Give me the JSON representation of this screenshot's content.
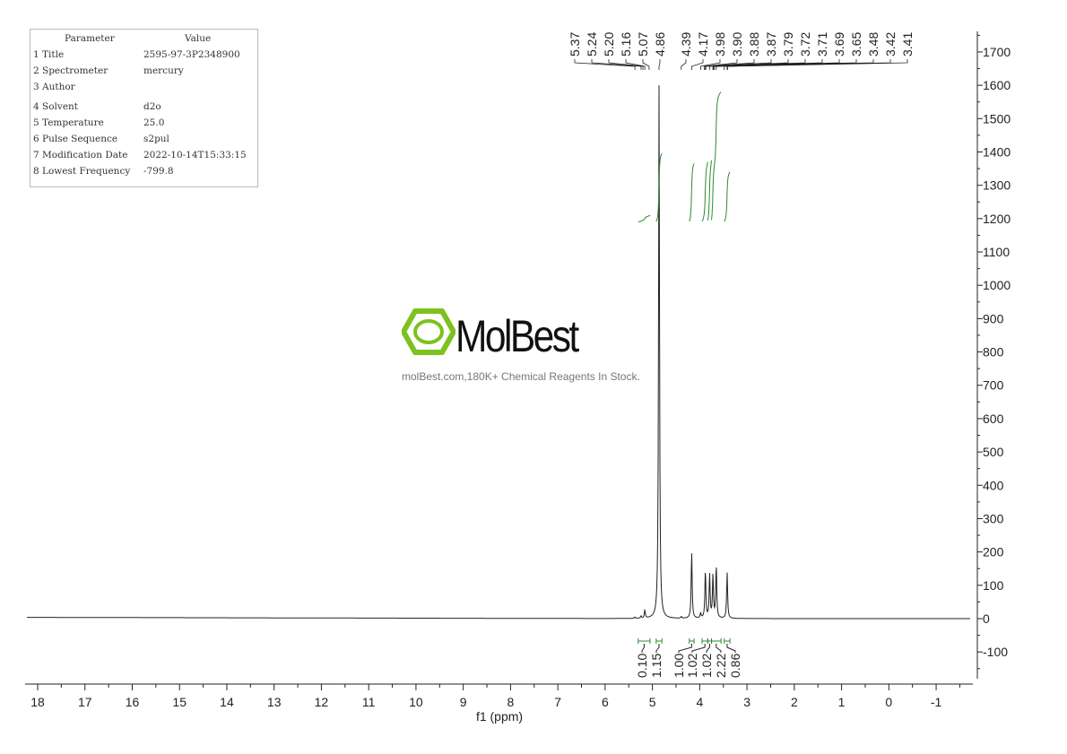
{
  "parameters": {
    "header": [
      "Parameter",
      "Value"
    ],
    "rows": [
      [
        "1 Title",
        "2595-97-3P2348900"
      ],
      [
        "2 Spectrometer",
        "mercury"
      ],
      [
        "3 Author",
        ""
      ],
      [
        "4 Solvent",
        "d2o"
      ],
      [
        "5 Temperature",
        "25.0"
      ],
      [
        "6 Pulse Sequence",
        "s2pul"
      ],
      [
        "7 Modification Date",
        "2022-10-14T15:33:15"
      ],
      [
        "8 Lowest Frequency",
        "-799.8"
      ]
    ]
  },
  "watermark": {
    "name": "MolBest",
    "tagline": "molBest.com,180K+ Chemical Reagents In Stock.",
    "color": "#7dc21e"
  },
  "chart_data": {
    "type": "line",
    "xlabel": "f1 (ppm)",
    "xlim": [
      18.2,
      -1.8
    ],
    "x_reversed": true,
    "ylim": [
      -185,
      1780
    ],
    "x_ticks": [
      18,
      17,
      16,
      15,
      14,
      13,
      12,
      11,
      10,
      9,
      8,
      7,
      6,
      5,
      4,
      3,
      2,
      1,
      0,
      -1
    ],
    "y_ticks": [
      -100,
      0,
      100,
      200,
      300,
      400,
      500,
      600,
      700,
      800,
      900,
      1000,
      1100,
      1200,
      1300,
      1400,
      1500,
      1600,
      1700
    ],
    "y_axis_side": "right",
    "line_color": "#222222",
    "integral_color": "#2e8b2e",
    "peaks": [
      {
        "ppm": 5.37,
        "height": 4
      },
      {
        "ppm": 5.24,
        "height": 6
      },
      {
        "ppm": 5.16,
        "height": 24
      },
      {
        "ppm": 4.86,
        "height": 1600
      },
      {
        "ppm": 4.39,
        "height": 5
      },
      {
        "ppm": 4.17,
        "height": 200
      },
      {
        "ppm": 3.98,
        "height": 15
      },
      {
        "ppm": 3.88,
        "height": 145
      },
      {
        "ppm": 3.79,
        "height": 130
      },
      {
        "ppm": 3.72,
        "height": 130
      },
      {
        "ppm": 3.65,
        "height": 160
      },
      {
        "ppm": 3.42,
        "height": 138
      }
    ],
    "peak_labels": [
      "5.37",
      "5.24",
      "5.20",
      "5.16",
      "5.07",
      "4.86",
      "4.39",
      "4.17",
      "3.98",
      "3.90",
      "3.88",
      "3.87",
      "3.79",
      "3.72",
      "3.71",
      "3.69",
      "3.65",
      "3.48",
      "3.42",
      "3.41"
    ],
    "integrals": [
      {
        "from": 5.3,
        "to": 5.05,
        "value": "0.10"
      },
      {
        "from": 4.92,
        "to": 4.8,
        "value": "1.15"
      },
      {
        "from": 4.22,
        "to": 4.12,
        "value": "1.00"
      },
      {
        "from": 3.95,
        "to": 3.83,
        "value": "1.02"
      },
      {
        "from": 3.83,
        "to": 3.75,
        "value": "1.02"
      },
      {
        "from": 3.75,
        "to": 3.55,
        "value": "2.22"
      },
      {
        "from": 3.48,
        "to": 3.36,
        "value": "0.86"
      }
    ]
  }
}
